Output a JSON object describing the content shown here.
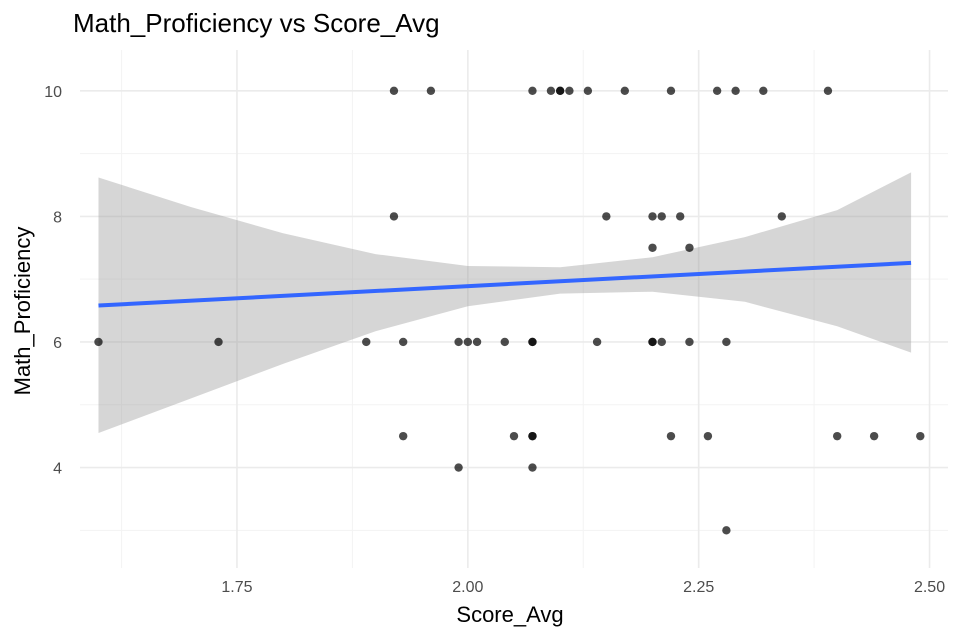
{
  "chart_data": {
    "type": "scatter",
    "title": "Math_Proficiency vs Score_Avg",
    "xlabel": "Score_Avg",
    "ylabel": "Math_Proficiency",
    "xlim": [
      1.58,
      2.52
    ],
    "ylim": [
      2.4,
      10.65
    ],
    "x_ticks": [
      1.75,
      2.0,
      2.25,
      2.5
    ],
    "x_tick_labels": [
      "1.75",
      "2.00",
      "2.25",
      "2.50"
    ],
    "x_minor_ticks": [
      1.625,
      1.875,
      2.125,
      2.375
    ],
    "y_ticks": [
      4,
      6,
      8,
      10
    ],
    "y_tick_labels": [
      "4",
      "6",
      "8",
      "10"
    ],
    "y_minor_ticks": [
      3,
      5,
      7,
      9
    ],
    "grid": true,
    "legend": "none",
    "colors": {
      "points": "#000000",
      "trend_line": "#3366ff",
      "confidence_band": "#999999"
    },
    "points": [
      {
        "x": 1.92,
        "y": 10
      },
      {
        "x": 1.96,
        "y": 10
      },
      {
        "x": 2.07,
        "y": 10
      },
      {
        "x": 2.09,
        "y": 10
      },
      {
        "x": 2.1,
        "y": 10
      },
      {
        "x": 2.1,
        "y": 10
      },
      {
        "x": 2.11,
        "y": 10
      },
      {
        "x": 2.13,
        "y": 10
      },
      {
        "x": 2.17,
        "y": 10
      },
      {
        "x": 2.22,
        "y": 10
      },
      {
        "x": 2.27,
        "y": 10
      },
      {
        "x": 2.29,
        "y": 10
      },
      {
        "x": 2.32,
        "y": 10
      },
      {
        "x": 2.39,
        "y": 10
      },
      {
        "x": 1.92,
        "y": 8
      },
      {
        "x": 2.15,
        "y": 8
      },
      {
        "x": 2.2,
        "y": 8
      },
      {
        "x": 2.21,
        "y": 8
      },
      {
        "x": 2.23,
        "y": 8
      },
      {
        "x": 2.34,
        "y": 8
      },
      {
        "x": 2.2,
        "y": 7.5
      },
      {
        "x": 2.24,
        "y": 7.5
      },
      {
        "x": 1.6,
        "y": 6
      },
      {
        "x": 1.73,
        "y": 6
      },
      {
        "x": 1.89,
        "y": 6
      },
      {
        "x": 1.93,
        "y": 6
      },
      {
        "x": 1.99,
        "y": 6
      },
      {
        "x": 2.0,
        "y": 6
      },
      {
        "x": 2.01,
        "y": 6
      },
      {
        "x": 2.04,
        "y": 6
      },
      {
        "x": 2.07,
        "y": 6
      },
      {
        "x": 2.07,
        "y": 6
      },
      {
        "x": 2.14,
        "y": 6
      },
      {
        "x": 2.2,
        "y": 6
      },
      {
        "x": 2.2,
        "y": 6
      },
      {
        "x": 2.21,
        "y": 6
      },
      {
        "x": 2.24,
        "y": 6
      },
      {
        "x": 2.28,
        "y": 6
      },
      {
        "x": 1.93,
        "y": 4.5
      },
      {
        "x": 2.05,
        "y": 4.5
      },
      {
        "x": 2.07,
        "y": 4.5
      },
      {
        "x": 2.07,
        "y": 4.5
      },
      {
        "x": 2.22,
        "y": 4.5
      },
      {
        "x": 2.26,
        "y": 4.5
      },
      {
        "x": 2.4,
        "y": 4.5
      },
      {
        "x": 2.44,
        "y": 4.5
      },
      {
        "x": 2.49,
        "y": 4.5
      },
      {
        "x": 1.99,
        "y": 4
      },
      {
        "x": 2.07,
        "y": 4
      },
      {
        "x": 2.28,
        "y": 3
      }
    ],
    "trend_line": {
      "method": "linear",
      "x": [
        1.6,
        2.48
      ],
      "y": [
        6.58,
        7.26
      ]
    },
    "confidence_band": {
      "x": [
        1.6,
        1.7,
        1.8,
        1.9,
        2.0,
        2.1,
        2.2,
        2.3,
        2.4,
        2.48
      ],
      "upper": [
        8.62,
        8.15,
        7.73,
        7.4,
        7.21,
        7.19,
        7.35,
        7.67,
        8.1,
        8.7
      ],
      "lower": [
        4.55,
        5.1,
        5.65,
        6.17,
        6.57,
        6.77,
        6.8,
        6.64,
        6.25,
        5.83
      ]
    }
  }
}
